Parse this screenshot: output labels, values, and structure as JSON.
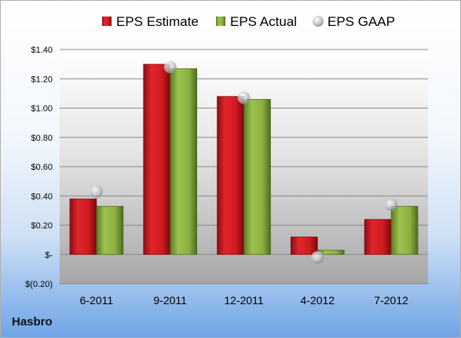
{
  "company": "Hasbro",
  "colors": {
    "estimate": "#c0141c",
    "actual": "#7fa03a",
    "gaap": "#b8bcc4"
  },
  "chart_data": {
    "type": "bar",
    "categories": [
      "6-2011",
      "9-2011",
      "12-2011",
      "4-2012",
      "7-2012"
    ],
    "series": [
      {
        "name": "EPS Estimate",
        "kind": "bar",
        "values": [
          0.38,
          1.3,
          1.08,
          0.12,
          0.24
        ]
      },
      {
        "name": "EPS Actual",
        "kind": "bar",
        "values": [
          0.33,
          1.27,
          1.06,
          0.03,
          0.33
        ]
      },
      {
        "name": "EPS GAAP",
        "kind": "marker",
        "values": [
          0.43,
          1.28,
          1.07,
          -0.02,
          0.34
        ]
      }
    ],
    "ylim": [
      -0.2,
      1.4
    ],
    "yticks": [
      -0.2,
      0,
      0.2,
      0.4,
      0.6,
      0.8,
      1.0,
      1.2,
      1.4
    ],
    "ytick_labels": [
      "$(0.20)",
      "$-",
      "$0.20",
      "$0.40",
      "$0.60",
      "$0.80",
      "$1.00",
      "$1.20",
      "$1.40"
    ],
    "grid": true,
    "legend_position": "top"
  }
}
